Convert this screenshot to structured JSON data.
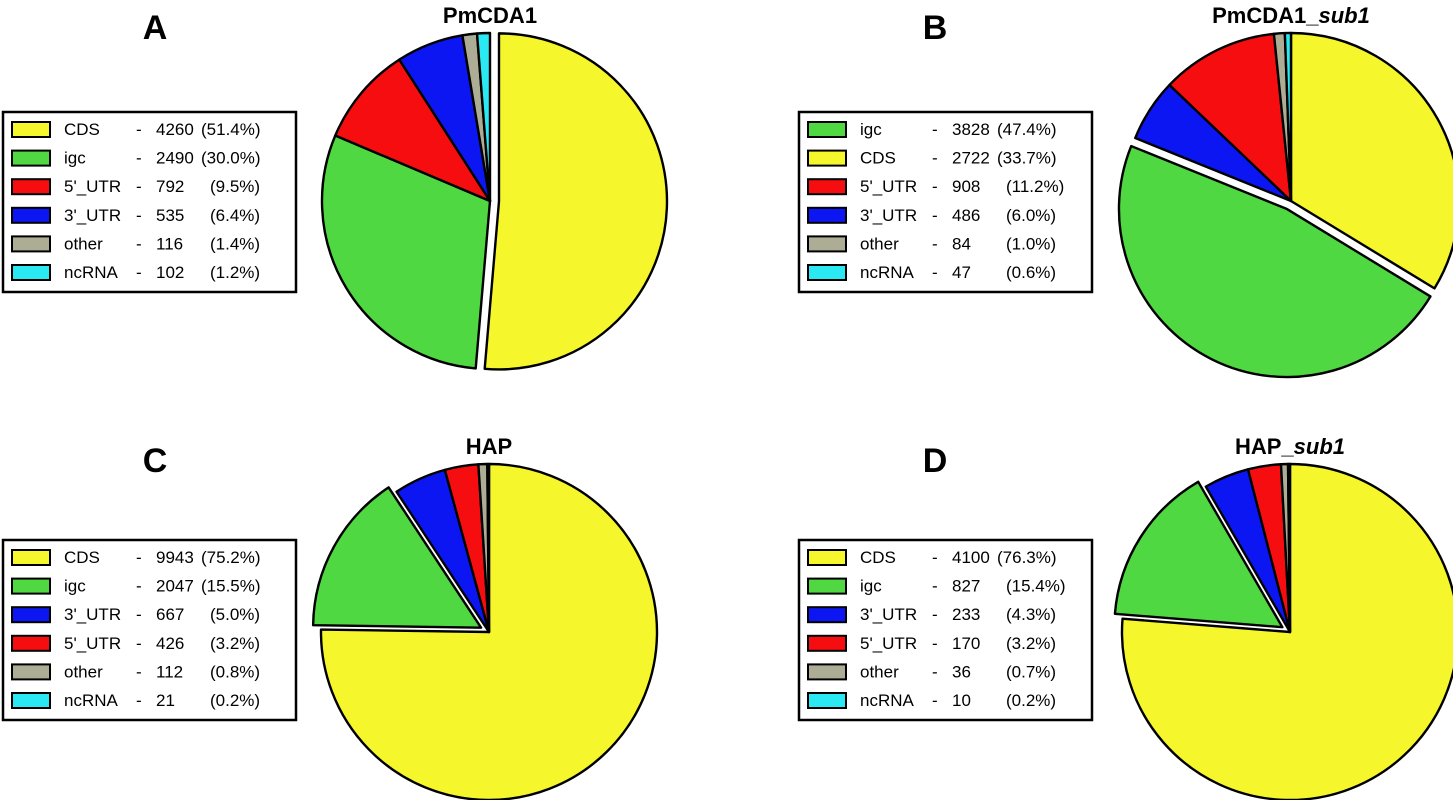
{
  "chart_data": [
    {
      "type": "pie",
      "panel": "A",
      "title": "PmCDA1",
      "title_italic_suffix": "",
      "labels": [
        "CDS",
        "igc",
        "5'_UTR",
        "3'_UTR",
        "other",
        "ncRNA"
      ],
      "values": [
        4260,
        2490,
        792,
        535,
        116,
        102
      ],
      "percents": [
        "51.4%",
        "30.0%",
        "9.5%",
        "6.4%",
        "1.4%",
        "1.2%"
      ],
      "colors": [
        "#f6f62c",
        "#4fd842",
        "#f50d0f",
        "#0c16f2",
        "#adad95",
        "#2ae9f3"
      ],
      "exploded": "CDS",
      "legend_placement": "left",
      "legend": [
        {
          "name": "CDS",
          "count": "4260",
          "pct": "(51.4%)"
        },
        {
          "name": "igc",
          "count": "2490",
          "pct": "(30.0%)"
        },
        {
          "name": "5'_UTR",
          "count": "792",
          "pct": "(9.5%)"
        },
        {
          "name": "3'_UTR",
          "count": "535",
          "pct": "(6.4%)"
        },
        {
          "name": "other",
          "count": "116",
          "pct": "(1.4%)"
        },
        {
          "name": "ncRNA",
          "count": "102",
          "pct": "(1.2%)"
        }
      ]
    },
    {
      "type": "pie",
      "panel": "B",
      "title": "PmCDA1_",
      "title_italic_suffix": "sub1",
      "labels": [
        "CDS",
        "igc",
        "3'_UTR",
        "5'_UTR",
        "other",
        "ncRNA"
      ],
      "values": [
        2722,
        3828,
        486,
        908,
        84,
        47
      ],
      "percents": [
        "33.7%",
        "47.4%",
        "6.0%",
        "11.2%",
        "1.0%",
        "0.6%"
      ],
      "colors": [
        "#f6f62c",
        "#4fd842",
        "#0c16f2",
        "#f50d0f",
        "#adad95",
        "#2ae9f3"
      ],
      "exploded": "igc",
      "legend_placement": "left",
      "legend": [
        {
          "name": "igc",
          "count": "3828",
          "pct": "(47.4%)"
        },
        {
          "name": "CDS",
          "count": "2722",
          "pct": "(33.7%)"
        },
        {
          "name": "5'_UTR",
          "count": "908",
          "pct": "(11.2%)"
        },
        {
          "name": "3'_UTR",
          "count": "486",
          "pct": "(6.0%)"
        },
        {
          "name": "other",
          "count": "84",
          "pct": "(1.0%)"
        },
        {
          "name": "ncRNA",
          "count": "47",
          "pct": "(0.6%)"
        }
      ]
    },
    {
      "type": "pie",
      "panel": "C",
      "title": "HAP",
      "title_italic_suffix": "",
      "labels": [
        "CDS",
        "igc",
        "3'_UTR",
        "5'_UTR",
        "other",
        "ncRNA"
      ],
      "values": [
        9943,
        2047,
        667,
        426,
        112,
        21
      ],
      "percents": [
        "75.2%",
        "15.5%",
        "5.0%",
        "3.2%",
        "0.8%",
        "0.2%"
      ],
      "colors": [
        "#f6f62c",
        "#4fd842",
        "#0c16f2",
        "#f50d0f",
        "#adad95",
        "#2ae9f3"
      ],
      "exploded": "igc",
      "legend_placement": "left",
      "legend": [
        {
          "name": "CDS",
          "count": "9943",
          "pct": "(75.2%)"
        },
        {
          "name": "igc",
          "count": "2047",
          "pct": "(15.5%)"
        },
        {
          "name": "3'_UTR",
          "count": "667",
          "pct": "(5.0%)"
        },
        {
          "name": "5'_UTR",
          "count": "426",
          "pct": "(3.2%)"
        },
        {
          "name": "other",
          "count": "112",
          "pct": "(0.8%)"
        },
        {
          "name": "ncRNA",
          "count": "21",
          "pct": "(0.2%)"
        }
      ]
    },
    {
      "type": "pie",
      "panel": "D",
      "title": "HAP_",
      "title_italic_suffix": "sub1",
      "labels": [
        "CDS",
        "igc",
        "3'_UTR",
        "5'_UTR",
        "other",
        "ncRNA"
      ],
      "values": [
        4100,
        827,
        233,
        170,
        36,
        10
      ],
      "percents": [
        "76.3%",
        "15.4%",
        "4.3%",
        "3.2%",
        "0.7%",
        "0.2%"
      ],
      "colors": [
        "#f6f62c",
        "#4fd842",
        "#0c16f2",
        "#f50d0f",
        "#adad95",
        "#2ae9f3"
      ],
      "exploded": "igc",
      "legend_placement": "left",
      "legend": [
        {
          "name": "CDS",
          "count": "4100",
          "pct": "(76.3%)"
        },
        {
          "name": "igc",
          "count": "827",
          "pct": "(15.4%)"
        },
        {
          "name": "3'_UTR",
          "count": "233",
          "pct": "(4.3%)"
        },
        {
          "name": "5'_UTR",
          "count": "170",
          "pct": "(3.2%)"
        },
        {
          "name": "other",
          "count": "36",
          "pct": "(0.7%)"
        },
        {
          "name": "ncRNA",
          "count": "10",
          "pct": "(0.2%)"
        }
      ]
    }
  ]
}
